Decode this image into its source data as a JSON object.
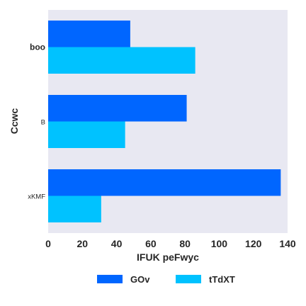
{
  "chart_data": {
    "type": "bar",
    "orientation": "horizontal",
    "categories": [
      "boo",
      "B",
      "xKMF"
    ],
    "series": [
      {
        "name": "GOv",
        "values": [
          48,
          81,
          136
        ],
        "color": "#0066ff"
      },
      {
        "name": "tTdXT",
        "values": [
          86,
          45,
          31
        ],
        "color": "#00c2ff"
      }
    ],
    "xlabel": "IFUK peFwyc",
    "ylabel": "Ccwc",
    "xlim": [
      0,
      140
    ],
    "xticks": [
      "0",
      "20",
      "40",
      "60",
      "80",
      "100",
      "120",
      "140"
    ],
    "grid": false,
    "legend_position": "bottom",
    "plot_background": "#e8e8f2"
  }
}
